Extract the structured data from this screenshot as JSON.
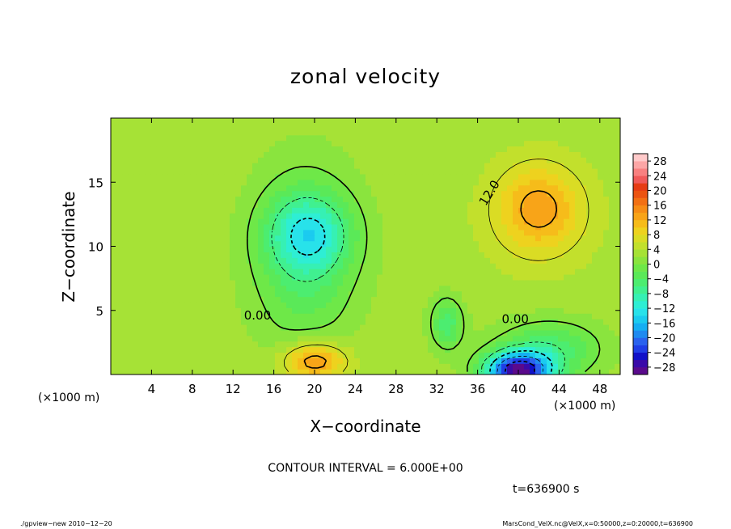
{
  "chart_data": {
    "type": "heatmap",
    "title": "zonal velocity",
    "xlabel": "X−coordinate",
    "ylabel": "Z−coordinate",
    "x_unit": "(×1000 m)",
    "y_unit": "(×1000 m)",
    "xlim": [
      0,
      50
    ],
    "ylim": [
      0,
      20
    ],
    "x_ticks": [
      4,
      8,
      12,
      16,
      20,
      24,
      28,
      32,
      36,
      40,
      44,
      48
    ],
    "y_ticks": [
      5,
      10,
      15
    ],
    "x_tick_labels": [
      "4",
      "8",
      "12",
      "16",
      "20",
      "24",
      "28",
      "32",
      "36",
      "40",
      "44",
      "48"
    ],
    "y_tick_labels": [
      "5",
      "10",
      "15"
    ],
    "colorbar": {
      "levels": [
        -30,
        -28,
        -26,
        -24,
        -22,
        -20,
        -18,
        -16,
        -14,
        -12,
        -10,
        -8,
        -6,
        -4,
        -2,
        0,
        2,
        4,
        6,
        8,
        10,
        12,
        14,
        16,
        18,
        20,
        22,
        24,
        26,
        28,
        30
      ],
      "tick_values": [
        -28,
        -24,
        -20,
        -16,
        -12,
        -8,
        -4,
        0,
        4,
        8,
        12,
        16,
        20,
        24,
        28
      ],
      "tick_labels": [
        "−28",
        "−24",
        "−20",
        "−16",
        "−12",
        "−8",
        "−4",
        "0",
        "4",
        "8",
        "12",
        "16",
        "20",
        "24",
        "28"
      ]
    },
    "contour_interval_text": "CONTOUR INTERVAL = 6.000E+00",
    "contour_labels": [
      {
        "text": "12.0",
        "x": 37.5,
        "z": 14.0
      },
      {
        "text": "0.00",
        "x": 14.4,
        "z": 4.3
      },
      {
        "text": "0.00",
        "x": 39.7,
        "z": 4.0
      }
    ],
    "background_value": 3,
    "features": [
      {
        "x": 20,
        "z": 1.0,
        "value": 16,
        "sx": 3.0,
        "sz": 1.4
      },
      {
        "x": 20,
        "z": 2.0,
        "value": 4,
        "sx": 4.0,
        "sz": 1.8
      },
      {
        "x": 42,
        "z": 13,
        "value": 14,
        "sx": 4.2,
        "sz": 3.4
      },
      {
        "x": 42,
        "z": 11,
        "value": 4,
        "sx": 7.0,
        "sz": 4.5
      },
      {
        "x": 40,
        "z": 0.3,
        "value": -30,
        "sx": 3.2,
        "sz": 1.4
      },
      {
        "x": 43,
        "z": 2.0,
        "value": -6,
        "sx": 5.0,
        "sz": 2.2
      },
      {
        "x": 19.5,
        "z": 11,
        "value": -9,
        "sx": 4.0,
        "sz": 3.0
      },
      {
        "x": 19,
        "z": 9,
        "value": -5,
        "sx": 5.0,
        "sz": 7.0
      },
      {
        "x": 33,
        "z": 4,
        "value": -6,
        "sx": 1.6,
        "sz": 2.0
      },
      {
        "x": 1.5,
        "z": 12,
        "value": 4,
        "sx": 2.0,
        "sz": 6.0
      },
      {
        "x": 6,
        "z": 4,
        "value": 2,
        "sx": 2.5,
        "sz": 2.0
      },
      {
        "x": 40,
        "z": 7.5,
        "value": 3,
        "sx": 1.5,
        "sz": 1.0
      }
    ],
    "time_text": "t=636900 s",
    "footer_left": "./gpview−new   2010−12−20",
    "footer_right": "MarsCond_VelX.nc@VelX,x=0:50000,z=0:20000,t=636900",
    "colors": {
      "palette": [
        "#5a0a8c",
        "#3a0aa8",
        "#1010c8",
        "#1f3ee6",
        "#2a62ee",
        "#1f8af0",
        "#15aef2",
        "#1bcbef",
        "#28e2ea",
        "#2eeed4",
        "#36f0b4",
        "#40f090",
        "#4ced70",
        "#5ae958",
        "#6ee848",
        "#8ae43e",
        "#a6e236",
        "#c2e02c",
        "#dadc24",
        "#eed21e",
        "#f6bc1a",
        "#f8a418",
        "#f68c16",
        "#f27014",
        "#ec5412",
        "#e63c14",
        "#f05a5a",
        "#f88080",
        "#fca6a6",
        "#ffcaca"
      ]
    }
  }
}
